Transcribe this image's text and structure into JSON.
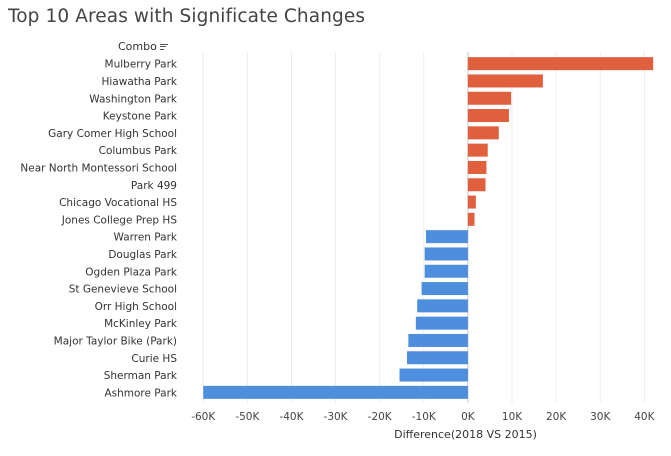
{
  "title": "Top 10 Areas with Significate Changes",
  "column_header": "Combo",
  "colors": {
    "positive": "#e05f3c",
    "negative": "#4e8fdd"
  },
  "chart_data": {
    "type": "bar",
    "orientation": "horizontal",
    "title": "Top 10 Areas with Significate Changes",
    "xlabel": "Difference(2018 VS 2015)",
    "ylabel": "Combo",
    "xlim": [
      -63000,
      44000
    ],
    "xticks": [
      -60000,
      -50000,
      -40000,
      -30000,
      -20000,
      -10000,
      0,
      10000,
      20000,
      30000,
      40000
    ],
    "xtick_labels": [
      "-60K",
      "-50K",
      "-40K",
      "-30K",
      "-20K",
      "-10K",
      "0K",
      "10K",
      "20K",
      "30K",
      "40K"
    ],
    "grid": true,
    "categories": [
      "Mulberry Park",
      "Hiawatha Park",
      "Washington Park",
      "Keystone Park",
      "Gary Comer High School",
      "Columbus Park",
      "Near North Montessori School",
      "Park 499",
      "Chicago Vocational HS",
      "Jones College Prep HS",
      "Warren Park",
      "Douglas Park",
      "Ogden Plaza Park",
      "St Genevieve School",
      "Orr High School",
      "McKinley Park",
      "Major Taylor Bike (Park)",
      "Curie HS",
      "Sherman Park",
      "Ashmore Park"
    ],
    "values": [
      42000,
      17000,
      9800,
      9300,
      7000,
      4500,
      4200,
      4000,
      1800,
      1500,
      -9500,
      -9800,
      -9800,
      -10500,
      -11500,
      -11800,
      -13500,
      -13800,
      -15500,
      -60000
    ]
  }
}
